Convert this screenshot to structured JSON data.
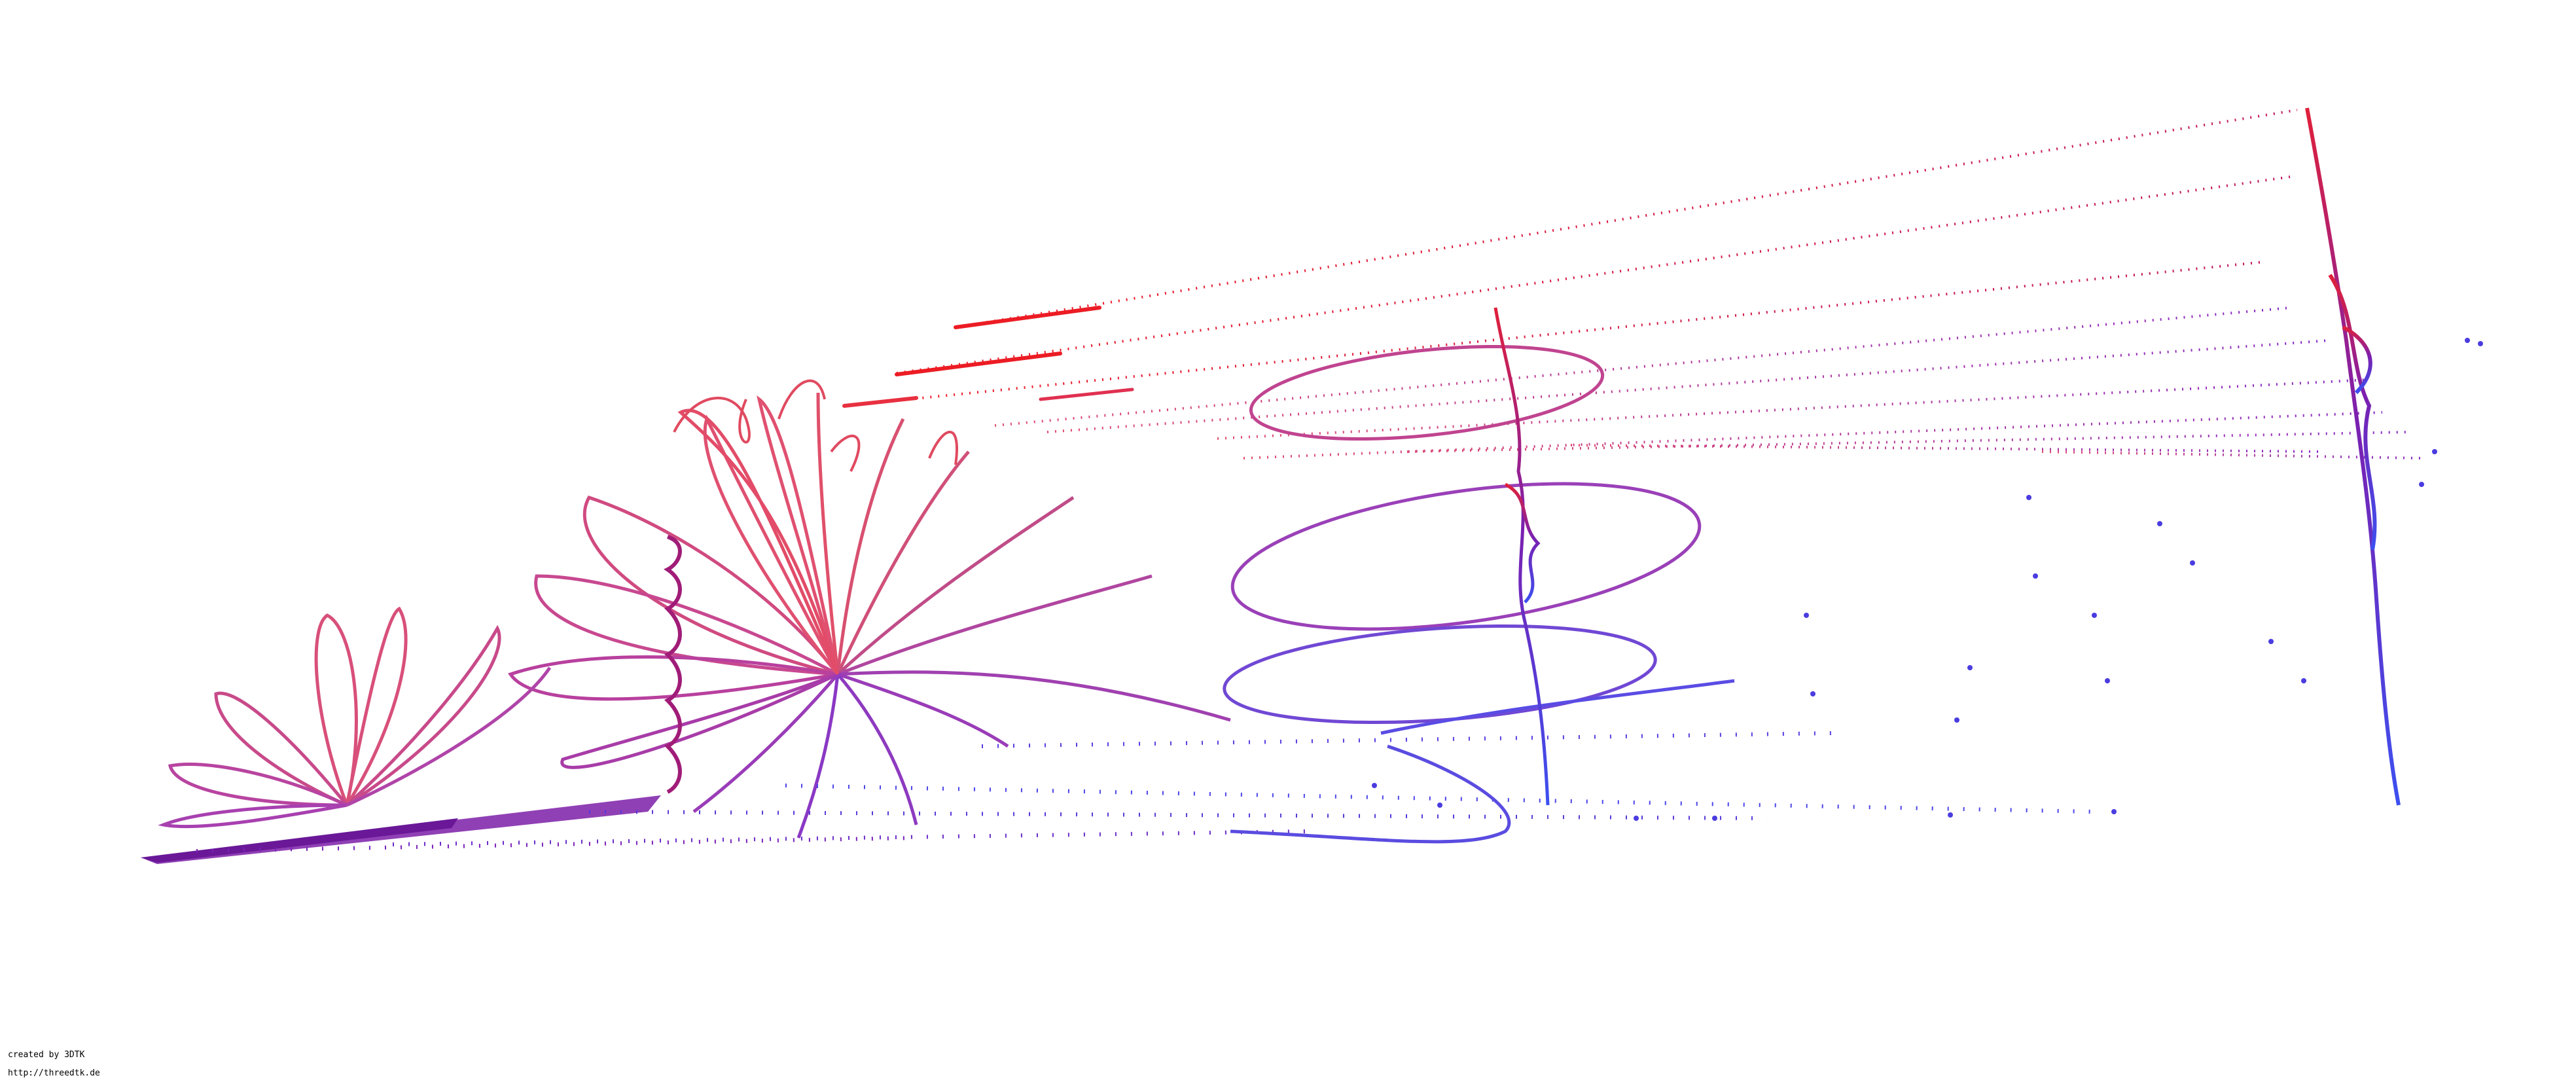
{
  "credits": {
    "created_by": "created by 3DTK",
    "url": "http://threedtk.de"
  },
  "palette": {
    "background": "#ffffff",
    "red": "#e8202a",
    "pink": "#e0507a",
    "magenta": "#a0248c",
    "purple": "#7a1eb4",
    "blue": "#3c4cf0"
  }
}
